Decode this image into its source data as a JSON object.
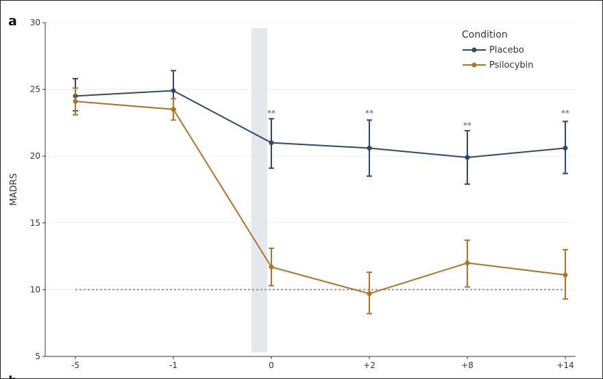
{
  "panel_letter": "a",
  "next_panel_letter": "b",
  "chart_data": {
    "type": "line",
    "title": "",
    "xlabel": "",
    "ylabel": "MADRS",
    "categories": [
      "-5",
      "-1",
      "0",
      "+2",
      "+8",
      "+14"
    ],
    "ylim": [
      5,
      30
    ],
    "yticks": [
      5,
      10,
      15,
      20,
      25,
      30
    ],
    "grid": true,
    "legend": {
      "title": "Condition",
      "placement": "top-right"
    },
    "series": [
      {
        "name": "Placebo",
        "color": "#2c4770",
        "values": [
          24.5,
          24.9,
          21.0,
          20.6,
          19.9,
          20.6
        ],
        "error_low": [
          23.4,
          23.5,
          19.1,
          18.5,
          17.9,
          18.7
        ],
        "error_high": [
          25.8,
          26.4,
          22.8,
          22.7,
          21.9,
          22.6
        ]
      },
      {
        "name": "Psilocybin",
        "color": "#b07322",
        "values": [
          24.1,
          23.5,
          11.7,
          9.7,
          12.0,
          11.1
        ],
        "error_low": [
          23.1,
          22.7,
          10.3,
          8.2,
          10.2,
          9.3
        ],
        "error_high": [
          25.1,
          24.3,
          13.1,
          11.3,
          13.7,
          13.0
        ]
      }
    ],
    "significance": [
      {
        "category": "0",
        "label": "**",
        "y": 23.2
      },
      {
        "category": "+2",
        "label": "**",
        "y": 23.2
      },
      {
        "category": "+8",
        "label": "**",
        "y": 22.3
      },
      {
        "category": "+14",
        "label": "**",
        "y": 23.2
      }
    ],
    "reference_line": {
      "y": 10,
      "style": "dotted",
      "color": "#8a8a8a"
    },
    "shaded_band": {
      "category": "0",
      "color": "#e4e8ec"
    }
  }
}
